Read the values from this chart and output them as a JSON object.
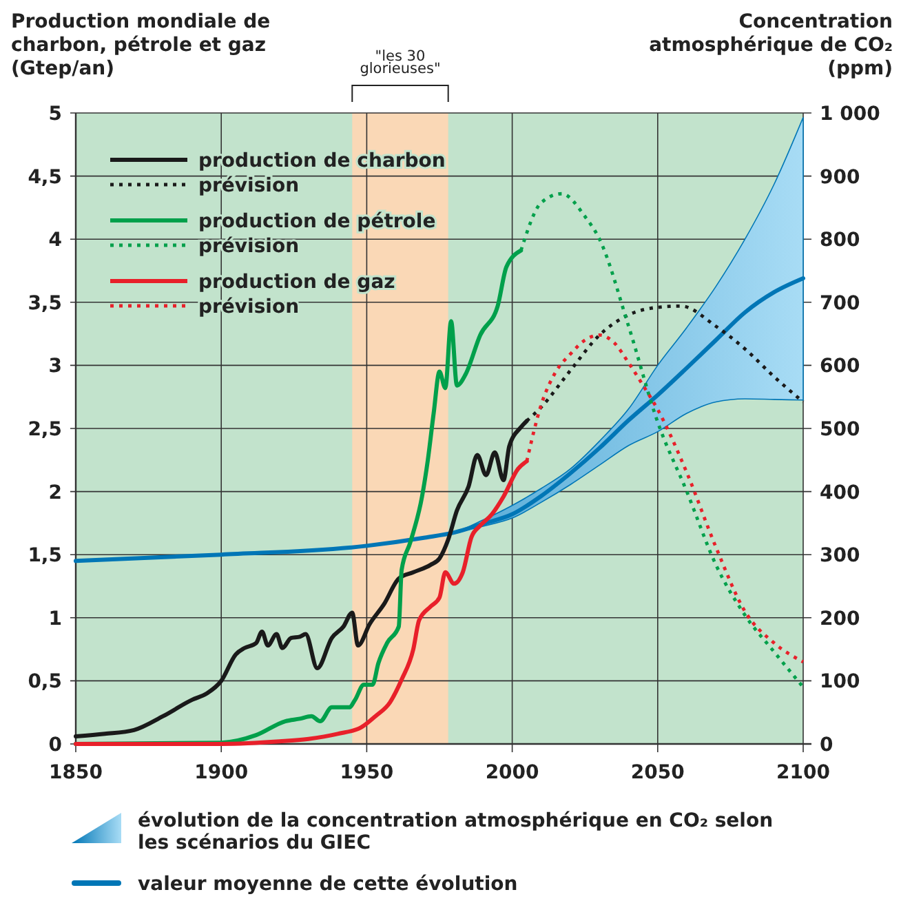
{
  "chart_data": {
    "type": "line",
    "ylabel": "Production mondiale de charbon, pétrole et gaz (Gtep/an)",
    "y2label": "Concentration atmosphérique de CO₂ (ppm)",
    "xlim": [
      1850,
      2100
    ],
    "xticks": [
      1850,
      1900,
      1950,
      2000,
      2050,
      2100
    ],
    "ylim": [
      0,
      5
    ],
    "yticks": [
      0,
      {
        "value": 0.5,
        "label": "0,5"
      },
      1,
      {
        "value": 1.5,
        "label": "1,5"
      },
      2,
      {
        "value": 2.5,
        "label": "2,5"
      },
      3,
      {
        "value": 3.5,
        "label": "3,5"
      },
      4,
      {
        "value": 4.5,
        "label": "4,5"
      },
      5
    ],
    "y2lim": [
      0,
      1000
    ],
    "y2ticks": [
      0,
      100,
      200,
      300,
      400,
      500,
      600,
      700,
      800,
      900,
      {
        "value": 1000,
        "label": "1 000"
      }
    ],
    "grid": true,
    "legend": "top left",
    "marker": "none",
    "bands": [
      {
        "axis": "x",
        "from": 1945,
        "to": 1978,
        "label": "\"les 30 glorieuses\"",
        "color": "#fad8b6"
      }
    ],
    "annotations": [
      "évolution de la concentration atmosphérique en CO₂ selon les scénarios du GIEC",
      "valeur moyenne de cette évolution"
    ],
    "series": [
      {
        "color": "#0076b6",
        "axis": "y2",
        "line_style": "solid",
        "x": [
          1850,
          1900,
          1950,
          1970,
          1980,
          1990,
          2000,
          2010,
          2020,
          2030,
          2040,
          2050,
          2060,
          2070,
          2080,
          2090,
          2100
        ],
        "values": [
          290,
          300,
          314,
          327,
          335,
          349,
          364,
          393,
          429,
          469,
          513,
          553,
          596,
          640,
          684,
          716,
          738
        ],
        "lower": [
          290,
          300,
          314,
          327,
          335,
          345,
          358,
          383,
          411,
          442,
          473,
          495,
          524,
          542,
          547,
          546,
          545
        ],
        "upper": [
          290,
          300,
          314,
          327,
          335,
          355,
          378,
          405,
          436,
          480,
          531,
          600,
          660,
          725,
          800,
          887,
          993
        ]
      },
      {
        "name": "production de charbon",
        "color": "#1a1a1a",
        "line_style": "solid",
        "x": [
          1850,
          1860,
          1870,
          1880,
          1890,
          1895,
          1900,
          1905,
          1908,
          1912,
          1914,
          1916,
          1919,
          1921,
          1924,
          1927,
          1929,
          1933,
          1938,
          1942,
          1945,
          1947,
          1951,
          1956,
          1961,
          1966,
          1972,
          1975,
          1978,
          1981,
          1985,
          1988,
          1991,
          1994,
          1997,
          1999,
          2003,
          2005
        ],
        "values": [
          0.06,
          0.08,
          0.11,
          0.22,
          0.35,
          0.4,
          0.5,
          0.71,
          0.76,
          0.8,
          0.89,
          0.78,
          0.87,
          0.76,
          0.84,
          0.85,
          0.87,
          0.6,
          0.84,
          0.93,
          1.04,
          0.78,
          0.95,
          1.11,
          1.31,
          1.36,
          1.42,
          1.47,
          1.62,
          1.85,
          2.04,
          2.29,
          2.13,
          2.31,
          2.09,
          2.36,
          2.51,
          2.56
        ]
      },
      {
        "name": "prévision",
        "color": "#1a1a1a",
        "line_style": "dotted",
        "x": [
          2005,
          2010,
          2020,
          2030,
          2040,
          2050,
          2058,
          2070,
          2080,
          2090,
          2100
        ],
        "values": [
          2.56,
          2.67,
          2.96,
          3.24,
          3.4,
          3.46,
          3.47,
          3.31,
          3.13,
          2.91,
          2.71
        ]
      },
      {
        "name": "production de pétrole",
        "color": "#00a04b",
        "line_style": "solid",
        "x": [
          1850,
          1900,
          1912,
          1922,
          1927,
          1931,
          1934,
          1938,
          1944,
          1946,
          1949,
          1952,
          1954,
          1957,
          1961,
          1962,
          1965,
          1969,
          1971,
          1973,
          1975,
          1977,
          1979,
          1981,
          1984,
          1989,
          1995,
          1998,
          2003
        ],
        "values": [
          0,
          0.01,
          0.07,
          0.18,
          0.2,
          0.22,
          0.18,
          0.29,
          0.29,
          0.35,
          0.47,
          0.47,
          0.64,
          0.8,
          0.93,
          1.38,
          1.6,
          1.96,
          2.25,
          2.62,
          2.95,
          2.82,
          3.35,
          2.84,
          2.93,
          3.24,
          3.47,
          3.78,
          3.91
        ]
      },
      {
        "name": "prévision",
        "color": "#00a04b",
        "line_style": "dotted",
        "x": [
          2003,
          2010,
          2017,
          2025,
          2030,
          2040,
          2050,
          2060,
          2070,
          2080,
          2090,
          2100
        ],
        "values": [
          3.91,
          4.29,
          4.36,
          4.18,
          4.0,
          3.31,
          2.55,
          2.0,
          1.42,
          1.02,
          0.73,
          0.45
        ]
      },
      {
        "name": "production de gaz",
        "color": "#e8202a",
        "line_style": "solid",
        "x": [
          1850,
          1900,
          1920,
          1930,
          1940,
          1948,
          1953,
          1958,
          1962,
          1966,
          1968,
          1972,
          1975,
          1977,
          1980,
          1983,
          1986,
          1989,
          1993,
          1997,
          2002,
          2005
        ],
        "values": [
          0,
          0,
          0.02,
          0.04,
          0.08,
          0.13,
          0.22,
          0.33,
          0.51,
          0.75,
          0.98,
          1.09,
          1.16,
          1.36,
          1.27,
          1.36,
          1.64,
          1.73,
          1.82,
          1.96,
          2.18,
          2.24
        ]
      },
      {
        "name": "prévision",
        "color": "#e8202a",
        "line_style": "dotted",
        "x": [
          2005,
          2010,
          2015,
          2020,
          2025,
          2030,
          2035,
          2040,
          2045,
          2050,
          2060,
          2070,
          2080,
          2090,
          2100
        ],
        "values": [
          2.24,
          2.69,
          2.95,
          3.09,
          3.2,
          3.24,
          3.18,
          3.02,
          2.84,
          2.65,
          2.15,
          1.56,
          1.05,
          0.8,
          0.65
        ]
      }
    ]
  }
}
